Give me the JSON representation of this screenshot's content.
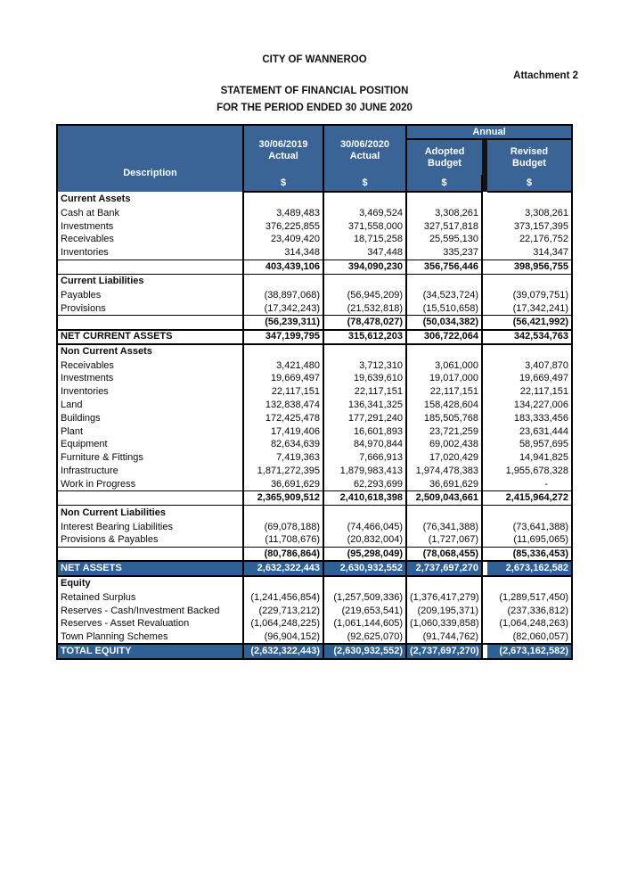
{
  "colors": {
    "header_blue": "#3A6396",
    "band_blue": "#2E5F95"
  },
  "document": {
    "organisation": "CITY OF WANNEROO",
    "attachment": "Attachment 2",
    "title": "STATEMENT OF FINANCIAL POSITION",
    "period": "FOR THE PERIOD ENDED 30 JUNE 2020"
  },
  "table": {
    "header": {
      "description": "Description",
      "annual": "Annual",
      "currency_symbol": "$",
      "columns": [
        {
          "line1": "30/06/2019",
          "line2": "Actual"
        },
        {
          "line1": "30/06/2020",
          "line2": "Actual"
        },
        {
          "line1": "Adopted",
          "line2": "Budget"
        },
        {
          "line1": "Revised",
          "line2": "Budget"
        }
      ]
    },
    "rows": [
      {
        "type": "section",
        "label": "Current Assets",
        "values": [
          "",
          "",
          "",
          ""
        ]
      },
      {
        "type": "data",
        "label": "Cash at Bank",
        "values": [
          "3,489,483",
          "3,469,524",
          "3,308,261",
          "3,308,261"
        ]
      },
      {
        "type": "data",
        "label": "Investments",
        "values": [
          "376,225,855",
          "371,558,000",
          "327,517,818",
          "373,157,395"
        ]
      },
      {
        "type": "data",
        "label": "Receivables",
        "values": [
          "23,409,420",
          "18,715,258",
          "25,595,130",
          "22,176,752"
        ]
      },
      {
        "type": "data",
        "label": "Inventories",
        "values": [
          "314,348",
          "347,448",
          "335,237",
          "314,347"
        ]
      },
      {
        "type": "subtotal",
        "label": "",
        "values": [
          "403,439,106",
          "394,090,230",
          "356,756,446",
          "398,956,755"
        ]
      },
      {
        "type": "section",
        "label": "Current Liabilities",
        "values": [
          "",
          "",
          "",
          ""
        ]
      },
      {
        "type": "data",
        "label": "Payables",
        "values": [
          "(38,897,068)",
          "(56,945,209)",
          "(34,523,724)",
          "(39,079,751)"
        ]
      },
      {
        "type": "data",
        "label": "Provisions",
        "values": [
          "(17,342,243)",
          "(21,532,818)",
          "(15,510,658)",
          "(17,342,241)"
        ]
      },
      {
        "type": "subtotal",
        "label": "",
        "values": [
          "(56,239,311)",
          "(78,478,027)",
          "(50,034,382)",
          "(56,421,992)"
        ]
      },
      {
        "type": "netrow",
        "label": "NET CURRENT ASSETS",
        "values": [
          "347,199,795",
          "315,612,203",
          "306,722,064",
          "342,534,763"
        ]
      },
      {
        "type": "section",
        "label": "Non Current Assets",
        "values": [
          "",
          "",
          "",
          ""
        ]
      },
      {
        "type": "data",
        "label": "Receivables",
        "values": [
          "3,421,480",
          "3,712,310",
          "3,061,000",
          "3,407,870"
        ]
      },
      {
        "type": "data",
        "label": "Investments",
        "values": [
          "19,669,497",
          "19,639,610",
          "19,017,000",
          "19,669,497"
        ]
      },
      {
        "type": "data",
        "label": "Inventories",
        "values": [
          "22,117,151",
          "22,117,151",
          "22,117,151",
          "22,117,151"
        ]
      },
      {
        "type": "data",
        "label": "Land",
        "values": [
          "132,838,474",
          "136,341,325",
          "158,428,604",
          "134,227,006"
        ]
      },
      {
        "type": "data",
        "label": "Buildings",
        "values": [
          "172,425,478",
          "177,291,240",
          "185,505,768",
          "183,333,456"
        ]
      },
      {
        "type": "data",
        "label": "Plant",
        "values": [
          "17,419,406",
          "16,601,893",
          "23,721,259",
          "23,631,444"
        ]
      },
      {
        "type": "data",
        "label": "Equipment",
        "values": [
          "82,634,639",
          "84,970,844",
          "69,002,438",
          "58,957,695"
        ]
      },
      {
        "type": "data",
        "label": "Furniture & Fittings",
        "values": [
          "7,419,363",
          "7,666,913",
          "17,020,429",
          "14,941,825"
        ]
      },
      {
        "type": "data",
        "label": "Infrastructure",
        "values": [
          "1,871,272,395",
          "1,879,983,413",
          "1,974,478,383",
          "1,955,678,328"
        ]
      },
      {
        "type": "data",
        "label": "Work in Progress",
        "values": [
          "36,691,629",
          "62,293,699",
          "36,691,629",
          "-"
        ]
      },
      {
        "type": "subtotal",
        "label": "",
        "values": [
          "2,365,909,512",
          "2,410,618,398",
          "2,509,043,661",
          "2,415,964,272"
        ]
      },
      {
        "type": "section",
        "label": "Non Current Liabilities",
        "values": [
          "",
          "",
          "",
          ""
        ]
      },
      {
        "type": "data",
        "label": "Interest Bearing Liabilities",
        "values": [
          "(69,078,188)",
          "(74,466,045)",
          "(76,341,388)",
          "(73,641,388)"
        ]
      },
      {
        "type": "data",
        "label": "Provisions & Payables",
        "values": [
          "(11,708,676)",
          "(20,832,004)",
          "(1,727,067)",
          "(11,695,065)"
        ]
      },
      {
        "type": "subtotal",
        "label": "",
        "values": [
          "(80,786,864)",
          "(95,298,049)",
          "(78,068,455)",
          "(85,336,453)"
        ]
      },
      {
        "type": "band",
        "label": "NET ASSETS",
        "values": [
          "2,632,322,443",
          "2,630,932,552",
          "2,737,697,270",
          "2,673,162,582"
        ]
      },
      {
        "type": "section",
        "label": "Equity",
        "values": [
          "",
          "",
          "",
          ""
        ]
      },
      {
        "type": "data",
        "label": "Retained Surplus",
        "values": [
          "(1,241,456,854)",
          "(1,257,509,336)",
          "(1,376,417,279)",
          "(1,289,517,450)"
        ]
      },
      {
        "type": "data",
        "label": "Reserves - Cash/Investment Backed",
        "values": [
          "(229,713,212)",
          "(219,653,541)",
          "(209,195,371)",
          "(237,336,812)"
        ]
      },
      {
        "type": "data",
        "label": "Reserves - Asset Revaluation",
        "values": [
          "(1,064,248,225)",
          "(1,061,144,605)",
          "(1,060,339,858)",
          "(1,064,248,263)"
        ]
      },
      {
        "type": "data",
        "label": "Town Planning Schemes",
        "values": [
          "(96,904,152)",
          "(92,625,070)",
          "(91,744,762)",
          "(82,060,057)"
        ]
      },
      {
        "type": "band",
        "label": "TOTAL EQUITY",
        "values": [
          "(2,632,322,443)",
          "(2,630,932,552)",
          "(2,737,697,270)",
          "(2,673,162,582)"
        ]
      }
    ]
  }
}
